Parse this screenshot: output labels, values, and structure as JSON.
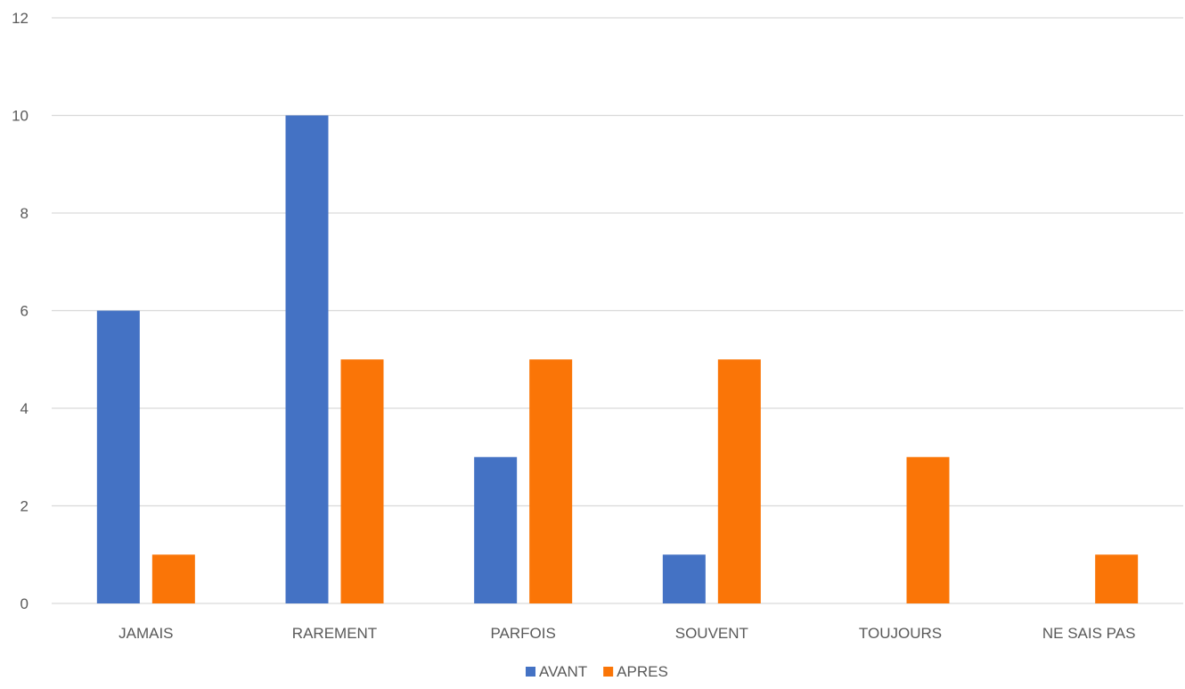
{
  "chart_data": {
    "type": "bar",
    "categories": [
      "JAMAIS",
      "RAREMENT",
      "PARFOIS",
      "SOUVENT",
      "TOUJOURS",
      "NE SAIS PAS"
    ],
    "series": [
      {
        "name": "AVANT",
        "values": [
          6,
          10,
          3,
          1,
          0,
          0
        ],
        "color": "#4472C4"
      },
      {
        "name": "APRES",
        "values": [
          1,
          5,
          5,
          5,
          3,
          1
        ],
        "color": "#FA7507"
      }
    ],
    "title": "",
    "xlabel": "",
    "ylabel": "",
    "ylim": [
      0,
      12
    ],
    "yticks": [
      "0",
      "2",
      "4",
      "6",
      "8",
      "10",
      "12"
    ],
    "grid": true,
    "legend_position": "bottom",
    "gridline_color": "#D9D9D9",
    "text_color": "#595959"
  }
}
